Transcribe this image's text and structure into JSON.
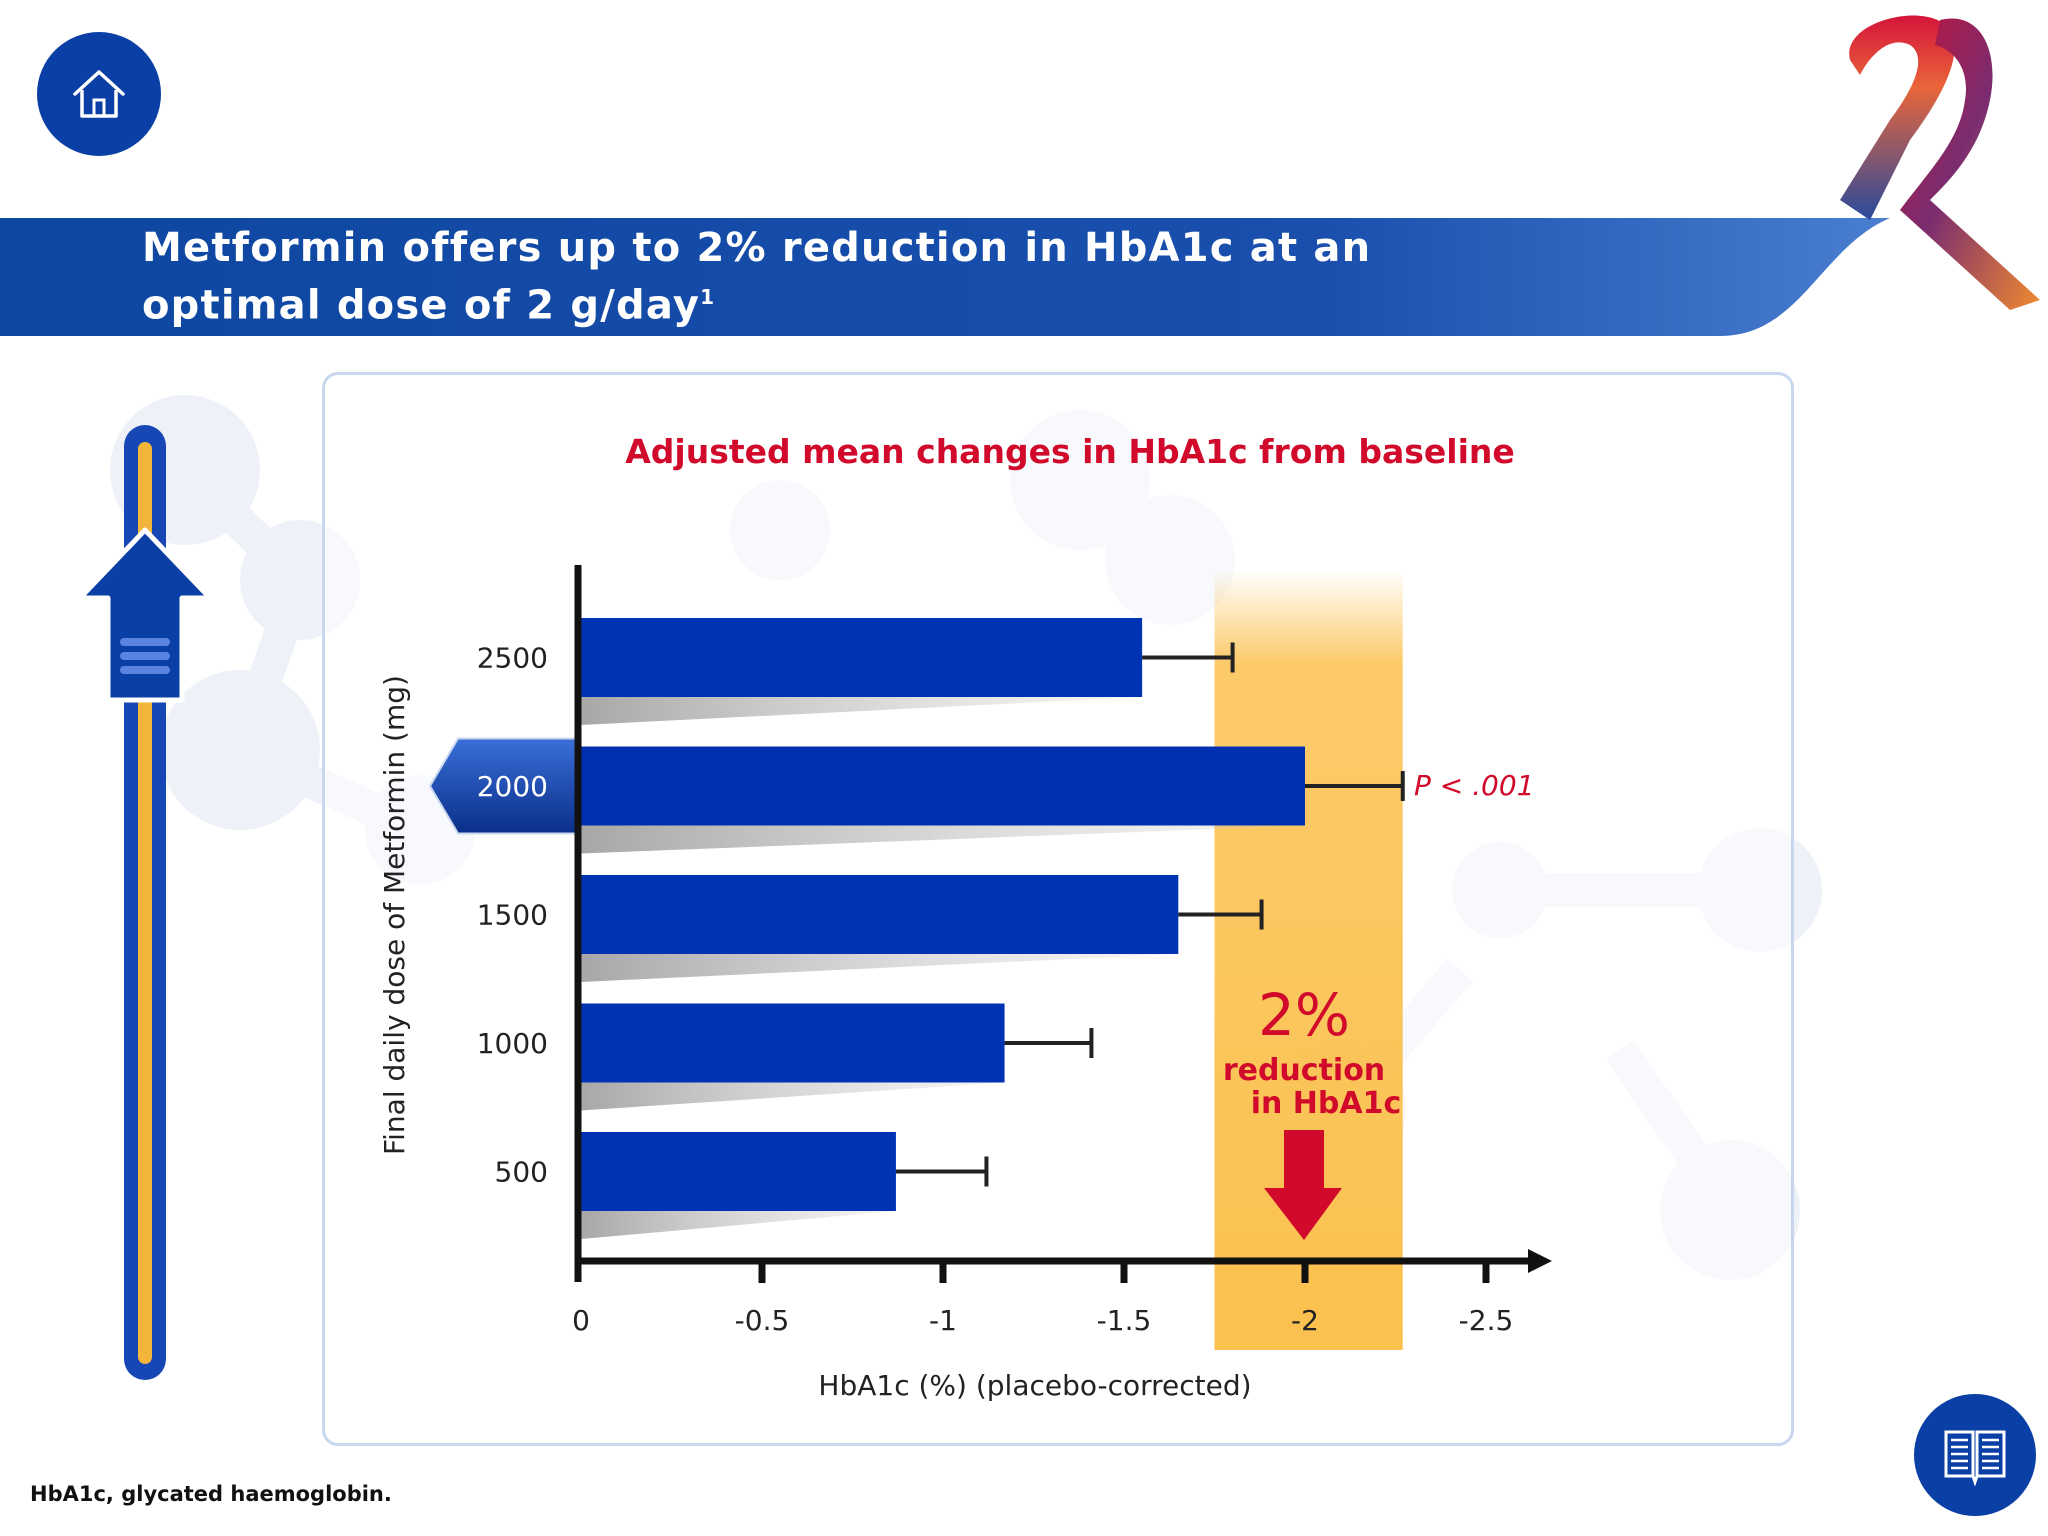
{
  "header": {
    "title_line1": "Metformin offers up to 2% reduction in HbA1c at an",
    "title_line2": "optimal dose of 2 g/day",
    "title_sup": "1"
  },
  "icons": {
    "home": "home-icon",
    "book": "book-icon",
    "ribbon": "awareness-ribbon-icon",
    "up_arrow": "up-arrow-icon"
  },
  "colors": {
    "brand_blue": "#0a3fa6",
    "bar_blue": "#0030b0",
    "accent_red": "#d10a2b",
    "highlight_orange": "#fbc14f"
  },
  "chart_data": {
    "type": "bar",
    "orientation": "horizontal",
    "title": "Adjusted mean changes in HbA1c from baseline",
    "xlabel": "HbA1c (%) (placebo-corrected)",
    "ylabel": "Final daily dose of Metformin (mg)",
    "xlim": [
      0,
      -2.5
    ],
    "x_ticks": [
      "0",
      "-0.5",
      "-1",
      "-1.5",
      "-2",
      "-2.5"
    ],
    "x_tick_values": [
      0,
      -0.5,
      -1,
      -1.5,
      -2,
      -2.5
    ],
    "categories": [
      "2500",
      "2000",
      "1500",
      "1000",
      "500"
    ],
    "values": [
      -1.55,
      -2.0,
      -1.65,
      -1.17,
      -0.87
    ],
    "error_upper": [
      -1.8,
      -2.27,
      -1.88,
      -1.41,
      -1.12
    ],
    "highlight_category": "2000",
    "highlight_band": [
      -1.75,
      -2.27
    ],
    "annotations": {
      "p_value": "P < .001",
      "reduction_value": "2%",
      "reduction_line1": "reduction",
      "reduction_line2": "in HbA1c"
    },
    "grid": false,
    "legend": "none"
  },
  "footnote": "HbA1c, glycated haemoglobin."
}
